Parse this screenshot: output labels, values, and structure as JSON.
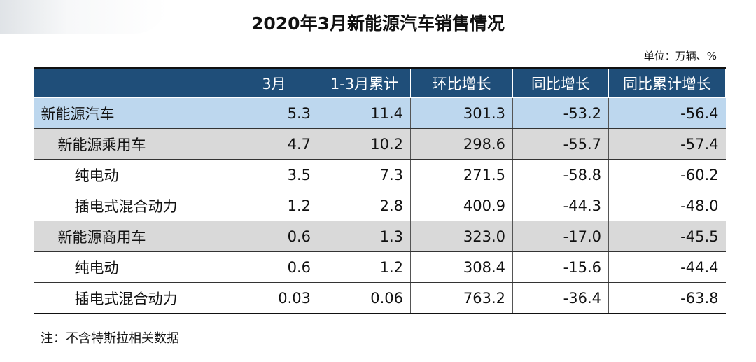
{
  "title": "2020年3月新能源汽车销售情况",
  "unit_note": "单位：万辆、%",
  "table": {
    "headers": [
      "",
      "3月",
      "1-3月累计",
      "环比增长",
      "同比增长",
      "同比累计增长"
    ],
    "rows": [
      {
        "label": "新能源汽车",
        "level": 0,
        "values": [
          "5.3",
          "11.4",
          "301.3",
          "-53.2",
          "-56.4"
        ]
      },
      {
        "label": "新能源乘用车",
        "level": 1,
        "values": [
          "4.7",
          "10.2",
          "298.6",
          "-55.7",
          "-57.4"
        ]
      },
      {
        "label": "纯电动",
        "level": 2,
        "values": [
          "3.5",
          "7.3",
          "271.5",
          "-58.8",
          "-60.2"
        ]
      },
      {
        "label": "插电式混合动力",
        "level": 2,
        "values": [
          "1.2",
          "2.8",
          "400.9",
          "-44.3",
          "-48.0"
        ]
      },
      {
        "label": "新能源商用车",
        "level": 1,
        "values": [
          "0.6",
          "1.3",
          "323.0",
          "-17.0",
          "-45.5"
        ]
      },
      {
        "label": "纯电动",
        "level": 2,
        "values": [
          "0.6",
          "1.2",
          "308.4",
          "-15.6",
          "-44.4"
        ]
      },
      {
        "label": "插电式混合动力",
        "level": 2,
        "values": [
          "0.03",
          "0.06",
          "763.2",
          "-36.4",
          "-63.8"
        ]
      }
    ]
  },
  "footnote": "注：不含特斯拉相关数据",
  "colors": {
    "header_bg": "#1f4e79",
    "total_row_bg": "#bdd7ee",
    "subtotal_row_bg": "#d9d9d9"
  }
}
